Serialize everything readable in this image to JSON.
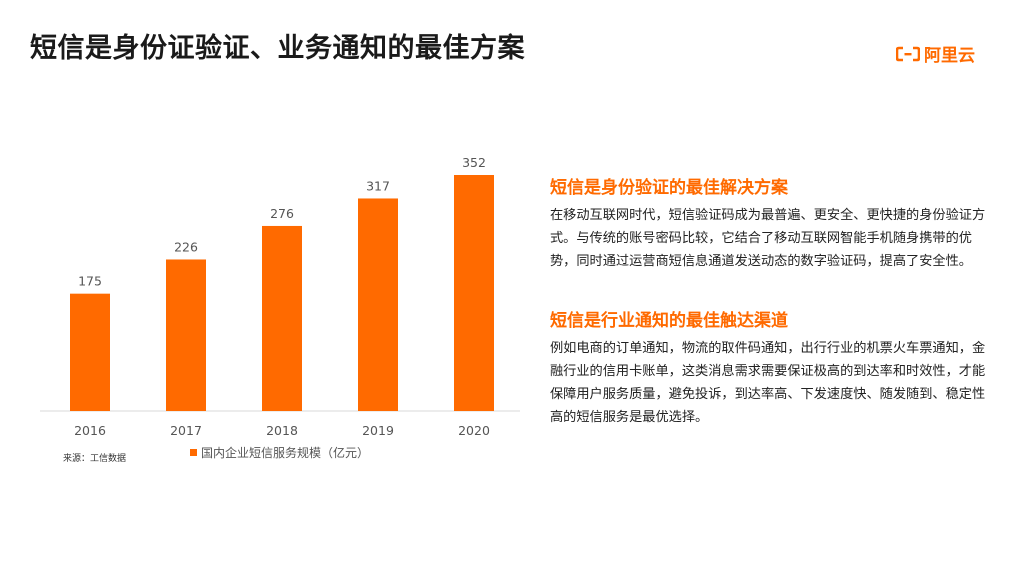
{
  "page": {
    "title": "短信是身份证验证、业务通知的最佳方案",
    "logo_text": "阿里云",
    "accent": "#ff6a00"
  },
  "sections": [
    {
      "heading": "短信是身份验证的最佳解决方案",
      "body": "在移动互联网时代，短信验证码成为最普遍、更安全、更快捷的身份验证方式。与传统的账号密码比较，它结合了移动互联网智能手机随身携带的优势，同时通过运营商短信息通道发送动态的数字验证码，提高了安全性。"
    },
    {
      "heading": "短信是行业通知的最佳触达渠道",
      "body": "例如电商的订单通知，物流的取件码通知，出行行业的机票火车票通知，金融行业的信用卡账单，这类消息需求需要保证极高的到达率和时效性，才能保障用户服务质量，避免投诉，到达率高、下发速度快、随发随到、稳定性高的短信服务是最优选择。"
    }
  ],
  "chart_data": {
    "type": "bar",
    "categories": [
      "2016",
      "2017",
      "2018",
      "2019",
      "2020"
    ],
    "series": [
      {
        "name": "国内企业短信服务规模（亿元）",
        "values": [
          175,
          226,
          276,
          317,
          352
        ],
        "color": "#ff6a00"
      }
    ],
    "ylim": [
      0,
      352
    ],
    "data_labels": true,
    "grid": false,
    "legend": "bottom",
    "source": "来源：工信数据"
  }
}
